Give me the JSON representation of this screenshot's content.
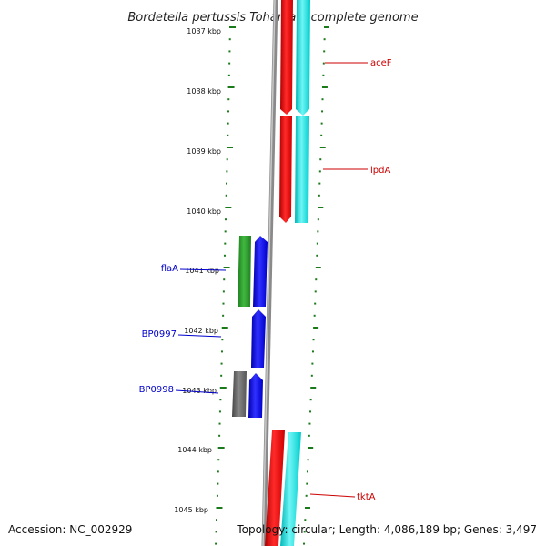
{
  "title": "Bordetella pertussis Tohama I, complete genome",
  "footer": {
    "accession": "Accession: NC_002929",
    "summary": "Topology: circular; Length: 4,086,189 bp; Genes: 3,497"
  },
  "scale_labels": [
    "1037 kbp",
    "1038 kbp",
    "1039 kbp",
    "1040 kbp",
    "1041 kbp",
    "1042 kbp",
    "1043 kbp",
    "1044 kbp",
    "1045 kbp"
  ],
  "gene_labels": {
    "aceF": "aceF",
    "lpdA": "lpdA",
    "tktA": "tktA",
    "flaA": "flaA",
    "BP0997": "BP0997",
    "BP0998": "BP0998"
  },
  "colors": {
    "forward_red": "#ff0000",
    "reverse_cyan": "#00e5e5",
    "flaA_green": "#2a9d2a",
    "cds_blue": "#0000ff",
    "gray_feature": "#666666",
    "backbone": "#888888",
    "tick_green": "#1a7a1a",
    "label_red": "#cc0000",
    "label_blue": "#0000cc"
  }
}
